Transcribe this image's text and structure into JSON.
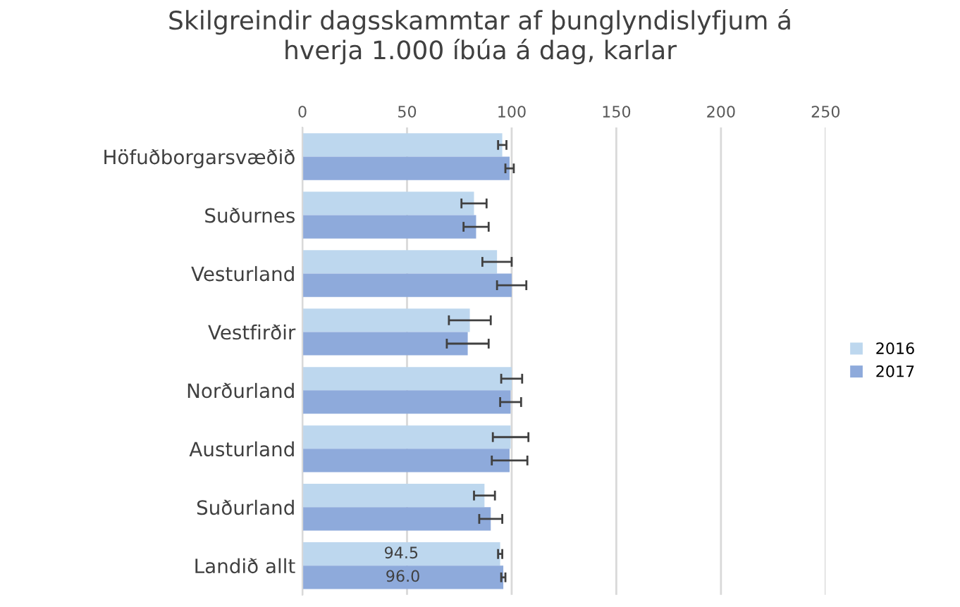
{
  "chart_data": {
    "type": "bar",
    "orientation": "horizontal",
    "title": "Skilgreindir dagsskammtar af þunglyndislyfjum á\nhverja 1.000 íbúa á dag, karlar",
    "categories": [
      "Höfuðborgarsvæðið",
      "Suðurnes",
      "Vesturland",
      "Vestfirðir",
      "Norðurland",
      "Austurland",
      "Suðurland",
      "Landið allt"
    ],
    "series": [
      {
        "name": "2016",
        "color": "#bdd7ee",
        "values": [
          95.5,
          82,
          93,
          80,
          100,
          99.5,
          87,
          94.5
        ],
        "errors": [
          2,
          6,
          7,
          10,
          5,
          8.5,
          5,
          1
        ],
        "value_labels": [
          null,
          null,
          null,
          null,
          null,
          null,
          null,
          "94.5"
        ]
      },
      {
        "name": "2017",
        "color": "#8eaadb",
        "values": [
          99,
          83,
          100,
          79,
          99.5,
          99,
          90,
          96.0
        ],
        "errors": [
          2,
          6,
          7,
          10,
          5,
          8.5,
          5.5,
          1
        ],
        "value_labels": [
          null,
          null,
          null,
          null,
          null,
          null,
          null,
          "96.0"
        ]
      }
    ],
    "xlim": [
      0,
      250
    ],
    "xticks": [
      0,
      50,
      100,
      150,
      200,
      250
    ],
    "grid": "x",
    "legend": "right"
  }
}
